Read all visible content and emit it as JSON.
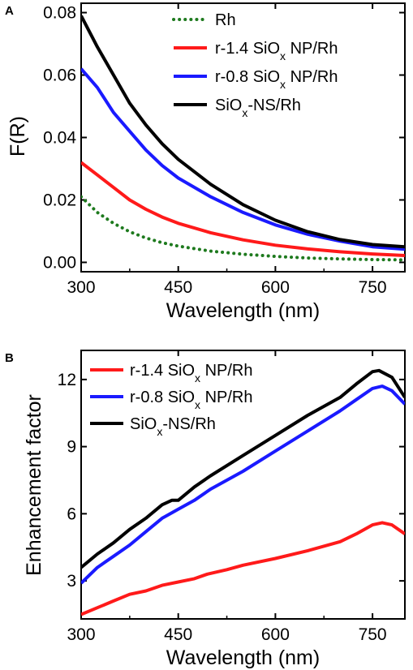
{
  "panels": [
    {
      "label": "A"
    },
    {
      "label": "B"
    }
  ],
  "chart_data": [
    {
      "type": "line",
      "xlabel": "Wavelength (nm)",
      "ylabel": "F(R)",
      "xlim": [
        300,
        800
      ],
      "ylim": [
        -0.003,
        0.083
      ],
      "xticks": [
        "300",
        "450",
        "600",
        "750"
      ],
      "yticks": [
        "0.00",
        "0.02",
        "0.04",
        "0.06",
        "0.08"
      ],
      "legend_position": "top-right",
      "series": [
        {
          "name": "Rh",
          "color": "#1e7a1e",
          "style": "dotted",
          "x": [
            300,
            325,
            350,
            375,
            400,
            425,
            450,
            500,
            550,
            600,
            650,
            700,
            750,
            800
          ],
          "y": [
            0.021,
            0.016,
            0.0125,
            0.0098,
            0.0078,
            0.0063,
            0.0052,
            0.0036,
            0.0026,
            0.0019,
            0.0014,
            0.0011,
            0.0009,
            0.0008
          ]
        },
        {
          "name": "r-1.4 SiOx NP/Rh",
          "color": "#ff1a1a",
          "style": "solid",
          "x": [
            300,
            325,
            350,
            375,
            400,
            425,
            450,
            500,
            550,
            600,
            650,
            700,
            750,
            800
          ],
          "y": [
            0.032,
            0.028,
            0.024,
            0.02,
            0.017,
            0.0145,
            0.0125,
            0.0095,
            0.0072,
            0.0055,
            0.0043,
            0.0034,
            0.0027,
            0.0022
          ]
        },
        {
          "name": "r-0.8 SiOx NP/Rh",
          "color": "#1a1aff",
          "style": "solid",
          "x": [
            300,
            325,
            350,
            375,
            400,
            425,
            450,
            500,
            550,
            600,
            650,
            700,
            750,
            800
          ],
          "y": [
            0.062,
            0.056,
            0.048,
            0.042,
            0.036,
            0.031,
            0.027,
            0.021,
            0.016,
            0.012,
            0.009,
            0.0068,
            0.005,
            0.0042
          ]
        },
        {
          "name": "SiOx-NS/Rh",
          "color": "#000000",
          "style": "solid",
          "x": [
            300,
            325,
            350,
            375,
            400,
            425,
            450,
            500,
            550,
            600,
            650,
            700,
            750,
            800
          ],
          "y": [
            0.079,
            0.069,
            0.06,
            0.051,
            0.044,
            0.038,
            0.033,
            0.025,
            0.0185,
            0.0135,
            0.0098,
            0.0073,
            0.0057,
            0.005
          ]
        }
      ]
    },
    {
      "type": "line",
      "xlabel": "Wavelength (nm)",
      "ylabel": "Enhancement factor",
      "xlim": [
        300,
        800
      ],
      "ylim": [
        1.3,
        13.3
      ],
      "xticks": [
        "300",
        "450",
        "600",
        "750"
      ],
      "yticks": [
        "3",
        "6",
        "9",
        "12"
      ],
      "legend_position": "top-left",
      "series": [
        {
          "name": "r-1.4 SiOx NP/Rh",
          "color": "#ff1a1a",
          "style": "solid",
          "x": [
            300,
            325,
            350,
            375,
            400,
            425,
            450,
            475,
            490,
            495,
            525,
            550,
            600,
            650,
            700,
            725,
            750,
            765,
            780,
            800
          ],
          "y": [
            1.5,
            1.8,
            2.1,
            2.4,
            2.55,
            2.8,
            2.95,
            3.1,
            3.25,
            3.3,
            3.5,
            3.7,
            4.0,
            4.35,
            4.75,
            5.1,
            5.5,
            5.6,
            5.5,
            5.1
          ]
        },
        {
          "name": "r-0.8 SiOx NP/Rh",
          "color": "#1a1aff",
          "style": "solid",
          "x": [
            300,
            325,
            350,
            375,
            400,
            425,
            450,
            475,
            500,
            550,
            600,
            650,
            700,
            725,
            750,
            765,
            780,
            800
          ],
          "y": [
            2.9,
            3.6,
            4.1,
            4.6,
            5.2,
            5.8,
            6.2,
            6.6,
            7.1,
            7.9,
            8.8,
            9.7,
            10.6,
            11.1,
            11.6,
            11.7,
            11.5,
            10.9
          ]
        },
        {
          "name": "SiOx-NS/Rh",
          "color": "#000000",
          "style": "solid",
          "x": [
            300,
            325,
            350,
            375,
            400,
            425,
            440,
            450,
            475,
            500,
            550,
            600,
            650,
            700,
            725,
            750,
            760,
            780,
            800
          ],
          "y": [
            3.6,
            4.2,
            4.7,
            5.3,
            5.8,
            6.4,
            6.6,
            6.6,
            7.2,
            7.7,
            8.6,
            9.5,
            10.4,
            11.2,
            11.8,
            12.35,
            12.4,
            12.1,
            11.2
          ]
        }
      ]
    }
  ]
}
